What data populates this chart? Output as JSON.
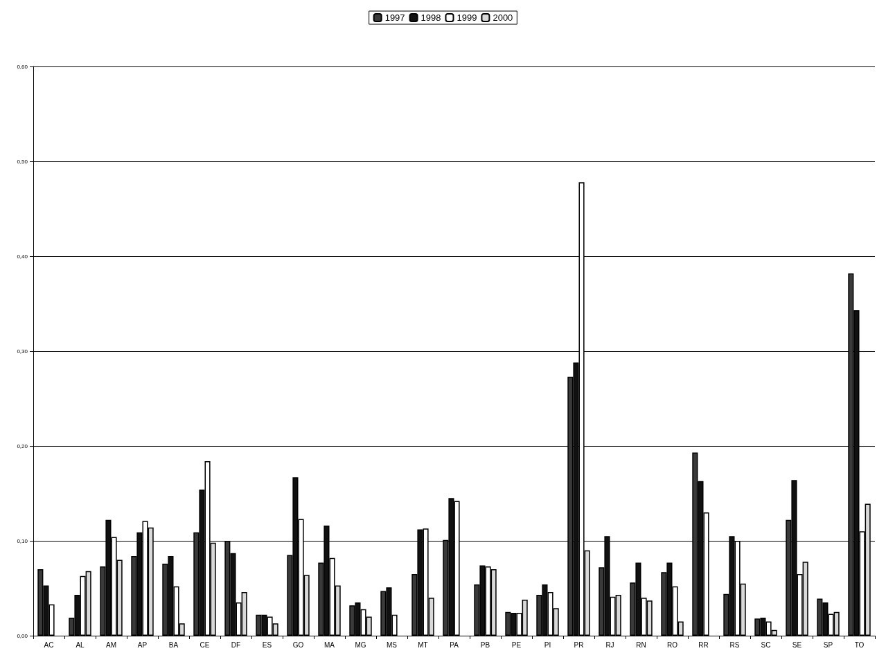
{
  "chart_data": {
    "type": "bar",
    "categories": [
      "AC",
      "AL",
      "AM",
      "AP",
      "BA",
      "CE",
      "DF",
      "ES",
      "GO",
      "MA",
      "MG",
      "MS",
      "MT",
      "PA",
      "PB",
      "PE",
      "PI",
      "PR",
      "RJ",
      "RN",
      "RO",
      "RR",
      "RS",
      "SC",
      "SE",
      "SP",
      "TO"
    ],
    "series": [
      {
        "name": "1997",
        "color": "#3a3a3a",
        "values": [
          0.07,
          0.019,
          0.073,
          0.084,
          0.076,
          0.109,
          0.1,
          0.022,
          0.085,
          0.077,
          0.032,
          0.047,
          0.065,
          0.101,
          0.054,
          0.025,
          0.043,
          0.273,
          0.072,
          0.056,
          0.067,
          0.193,
          0.044,
          0.018,
          0.122,
          0.039,
          0.382
        ]
      },
      {
        "name": "1998",
        "color": "#111111",
        "values": [
          0.053,
          0.043,
          0.122,
          0.109,
          0.084,
          0.154,
          0.087,
          0.022,
          0.167,
          0.116,
          0.035,
          0.051,
          0.112,
          0.145,
          0.074,
          0.024,
          0.054,
          0.288,
          0.105,
          0.077,
          0.077,
          0.163,
          0.105,
          0.019,
          0.164,
          0.035,
          0.343
        ]
      },
      {
        "name": "1999",
        "color": "#ffffff",
        "values": [
          0.033,
          0.063,
          0.104,
          0.121,
          0.052,
          0.184,
          0.035,
          0.02,
          0.123,
          0.082,
          0.028,
          0.022,
          0.113,
          0.142,
          0.073,
          0.024,
          0.046,
          0.478,
          0.041,
          0.04,
          0.052,
          0.13,
          0.1,
          0.015,
          0.065,
          0.023,
          0.11
        ]
      },
      {
        "name": "2000",
        "color": "#d9d9d9",
        "values": [
          null,
          0.068,
          0.08,
          0.114,
          0.013,
          0.098,
          0.046,
          0.013,
          0.064,
          0.053,
          0.02,
          null,
          0.04,
          null,
          0.07,
          0.038,
          0.029,
          0.09,
          0.043,
          0.037,
          0.015,
          null,
          0.055,
          0.006,
          0.078,
          0.025,
          0.139
        ]
      }
    ],
    "ylim": [
      0,
      0.6
    ],
    "yticks": [
      {
        "value": 0,
        "label": "0,00"
      },
      {
        "value": 0.1,
        "label": "0,10"
      },
      {
        "value": 0.2,
        "label": "0,20"
      },
      {
        "value": 0.3,
        "label": "0,30"
      },
      {
        "value": 0.4,
        "label": "0,40"
      },
      {
        "value": 0.5,
        "label": "0,50"
      },
      {
        "value": 0.6,
        "label": "0,60"
      }
    ],
    "grid": "y",
    "legend": "top"
  }
}
